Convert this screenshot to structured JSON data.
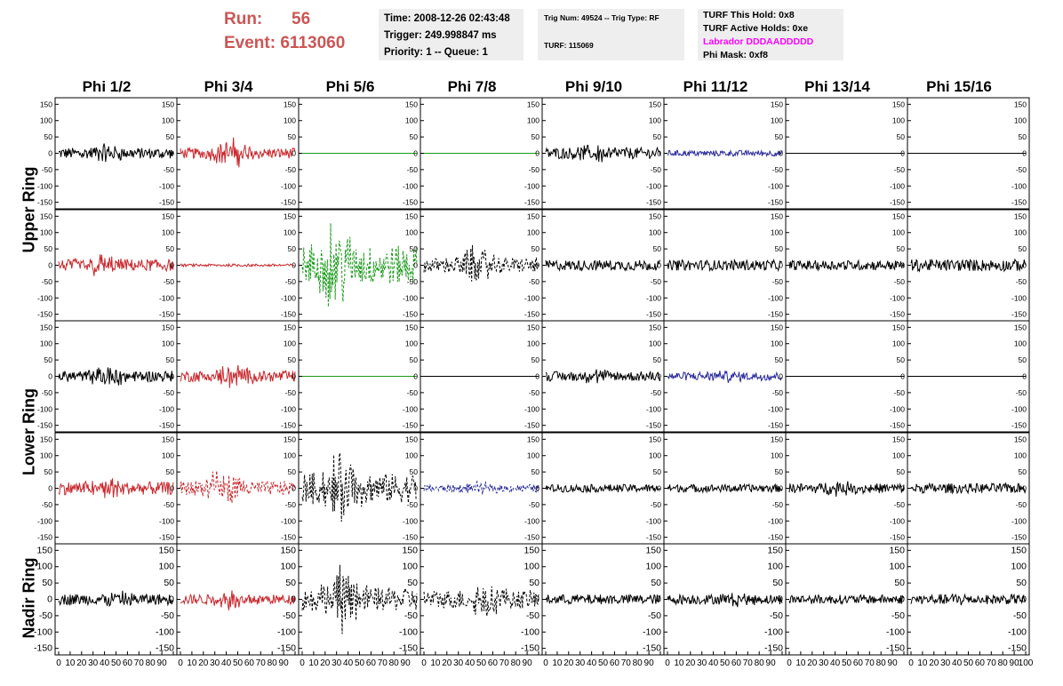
{
  "header": {
    "run_label": "Run:",
    "run_value": "56",
    "event_label": "Event:",
    "event_value": "6113060",
    "time": "Time: 2008-12-26 02:43:48",
    "trigger": "Trigger: 249.998847 ms",
    "priority": "Priority: 1 -- Queue: 1",
    "trig_num": "Trig Num: 49524 -- Trig Type: RF",
    "turf": "TURF: 115069",
    "turf_this_hold": "TURF This Hold: 0x8",
    "turf_active_holds": "TURF Active Holds: 0xe",
    "labrador": "Labrador DDDAADDDDD",
    "phi_mask": "Phi Mask: 0xf8"
  },
  "columns": [
    "Phi 1/2",
    "Phi 3/4",
    "Phi 5/6",
    "Phi 7/8",
    "Phi 9/10",
    "Phi 11/12",
    "Phi 13/14",
    "Phi 15/16"
  ],
  "ring_labels": [
    "Upper Ring",
    "Lower Ring",
    "Nadir Ring"
  ],
  "colors": {
    "black": "#000000",
    "red": "#c8282d",
    "green": "#1a9a1a",
    "blue": "#2a2a9a",
    "run_text": "#cc5555",
    "labrador": "#ff00ff",
    "info_bg": "#eeeeee"
  },
  "chart_data": {
    "type": "line",
    "x_range": [
      0,
      100
    ],
    "x_ticks": [
      "0",
      "10",
      "20",
      "30",
      "40",
      "50",
      "60",
      "70",
      "80",
      "90",
      "100"
    ],
    "y_range": [
      -170,
      170
    ],
    "y_ticks": [
      "150",
      "100",
      "50",
      "0",
      "-50",
      "-100",
      "-150"
    ],
    "grid": false,
    "panels": [
      [
        {
          "color": "black",
          "style": "solid",
          "amp": 17,
          "burst": 20,
          "center": 40
        },
        {
          "color": "red",
          "style": "solid",
          "amp": 16,
          "burst": 38,
          "center": 45
        },
        {
          "color": "green",
          "style": "solid",
          "amp": 0,
          "burst": 0,
          "center": 50
        },
        {
          "color": "green",
          "style": "solid",
          "amp": 0,
          "burst": 0,
          "center": 50
        },
        {
          "color": "black",
          "style": "solid",
          "amp": 17,
          "burst": 22,
          "center": 45
        },
        {
          "color": "blue",
          "style": "solid",
          "amp": 9,
          "burst": 0,
          "center": 50
        },
        {
          "color": "black",
          "style": "solid",
          "amp": 0,
          "burst": 0,
          "center": 50
        },
        {
          "color": "black",
          "style": "solid",
          "amp": 0,
          "burst": 0,
          "center": 50
        }
      ],
      [
        {
          "color": "red",
          "style": "solid",
          "amp": 18,
          "burst": 26,
          "center": 35
        },
        {
          "color": "red",
          "style": "solid",
          "amp": 4,
          "burst": 0,
          "center": 50
        },
        {
          "color": "green",
          "style": "dashed",
          "amp": 60,
          "burst": 95,
          "center": 30
        },
        {
          "color": "black",
          "style": "dashed",
          "amp": 22,
          "burst": 50,
          "center": 45
        },
        {
          "color": "black",
          "style": "solid",
          "amp": 16,
          "burst": 0,
          "center": 50
        },
        {
          "color": "black",
          "style": "solid",
          "amp": 16,
          "burst": 0,
          "center": 50
        },
        {
          "color": "black",
          "style": "solid",
          "amp": 15,
          "burst": 0,
          "center": 50
        },
        {
          "color": "black",
          "style": "solid",
          "amp": 18,
          "burst": 0,
          "center": 50
        }
      ],
      [
        {
          "color": "black",
          "style": "solid",
          "amp": 17,
          "burst": 25,
          "center": 45
        },
        {
          "color": "red",
          "style": "solid",
          "amp": 17,
          "burst": 28,
          "center": 45
        },
        {
          "color": "green",
          "style": "solid",
          "amp": 0,
          "burst": 0,
          "center": 50
        },
        {
          "color": "black",
          "style": "solid",
          "amp": 0,
          "burst": 0,
          "center": 50
        },
        {
          "color": "black",
          "style": "solid",
          "amp": 15,
          "burst": 12,
          "center": 45
        },
        {
          "color": "blue",
          "style": "solid",
          "amp": 13,
          "burst": 10,
          "center": 50
        },
        {
          "color": "black",
          "style": "solid",
          "amp": 0,
          "burst": 0,
          "center": 50
        },
        {
          "color": "black",
          "style": "solid",
          "amp": 0,
          "burst": 0,
          "center": 50
        }
      ],
      [
        {
          "color": "red",
          "style": "solid",
          "amp": 20,
          "burst": 25,
          "center": 40
        },
        {
          "color": "red",
          "style": "dashed",
          "amp": 22,
          "burst": 45,
          "center": 35
        },
        {
          "color": "black",
          "style": "dashed",
          "amp": 45,
          "burst": 85,
          "center": 35
        },
        {
          "color": "blue",
          "style": "dashed",
          "amp": 12,
          "burst": 10,
          "center": 50
        },
        {
          "color": "black",
          "style": "solid",
          "amp": 12,
          "burst": 0,
          "center": 50
        },
        {
          "color": "black",
          "style": "solid",
          "amp": 12,
          "burst": 0,
          "center": 50
        },
        {
          "color": "black",
          "style": "solid",
          "amp": 15,
          "burst": 12,
          "center": 45
        },
        {
          "color": "black",
          "style": "solid",
          "amp": 15,
          "burst": 0,
          "center": 50
        }
      ],
      [
        {
          "color": "black",
          "style": "solid",
          "amp": 17,
          "burst": 15,
          "center": 50
        },
        {
          "color": "red",
          "style": "solid",
          "amp": 15,
          "burst": 25,
          "center": 45
        },
        {
          "color": "black",
          "style": "dashed",
          "amp": 35,
          "burst": 85,
          "center": 35
        },
        {
          "color": "black",
          "style": "dashed",
          "amp": 28,
          "burst": 40,
          "center": 55
        },
        {
          "color": "black",
          "style": "solid",
          "amp": 15,
          "burst": 0,
          "center": 50
        },
        {
          "color": "black",
          "style": "solid",
          "amp": 15,
          "burst": 10,
          "center": 60
        },
        {
          "color": "black",
          "style": "solid",
          "amp": 14,
          "burst": 0,
          "center": 50
        },
        {
          "color": "black",
          "style": "solid",
          "amp": 15,
          "burst": 8,
          "center": 45
        }
      ]
    ]
  }
}
